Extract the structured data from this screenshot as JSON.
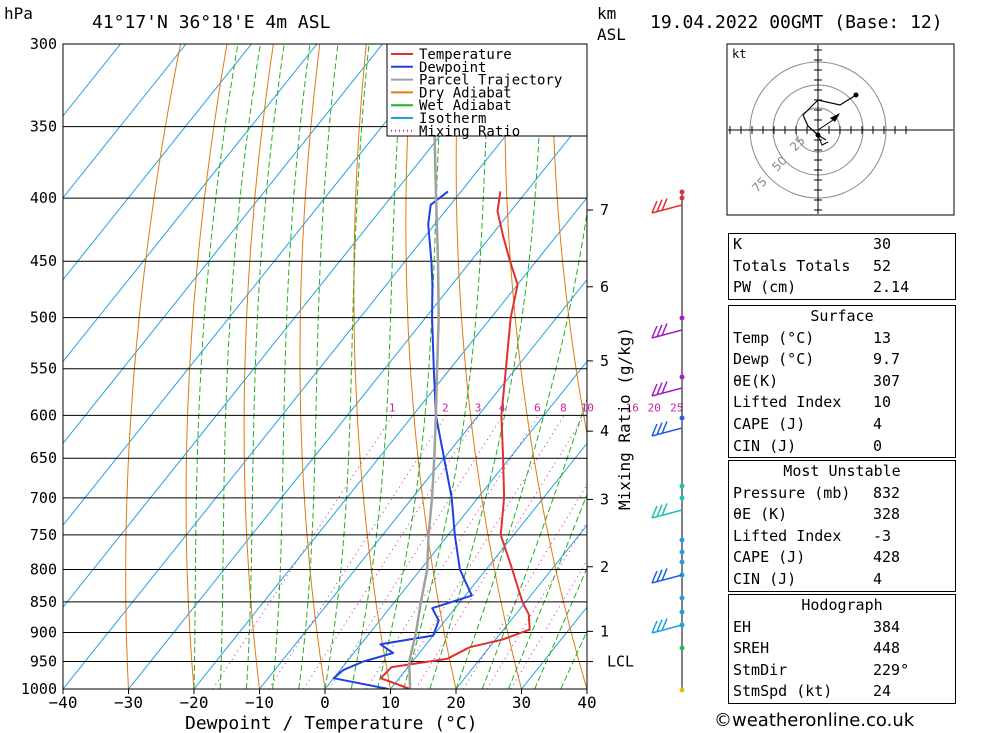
{
  "header": {
    "pressure_unit": "hPa",
    "location": "41°17'N 36°18'E 4m ASL",
    "km_unit": "km",
    "asl_unit": "ASL",
    "datetime": "19.04.2022 00GMT (Base: 12)"
  },
  "chart_data": {
    "type": "line",
    "title": "41°17'N 36°18'E 4m ASL",
    "xlabel": "Dewpoint / Temperature (°C)",
    "ylabel": "hPa",
    "y_scale": "log",
    "ylim": [
      1000,
      300
    ],
    "xlim_at_1000hPa": [
      -40,
      40
    ],
    "skew": "isotherms slope upward to the right",
    "pressure_ticks": [
      300,
      350,
      400,
      450,
      500,
      550,
      600,
      650,
      700,
      750,
      800,
      850,
      900,
      950,
      1000
    ],
    "temp_ticks": [
      -40,
      -30,
      -20,
      -10,
      0,
      10,
      20,
      30,
      40
    ],
    "km_ticks": [
      {
        "label": "7",
        "p": 409
      },
      {
        "label": "6",
        "p": 472
      },
      {
        "label": "5",
        "p": 542
      },
      {
        "label": "4",
        "p": 618
      },
      {
        "label": "3",
        "p": 702
      },
      {
        "label": "2",
        "p": 796
      },
      {
        "label": "1",
        "p": 898
      },
      {
        "label": "LCL",
        "p": 950
      }
    ],
    "mixing_ratio_label": "Mixing Ratio (g/kg)",
    "mixing_ratio_values": [
      1,
      2,
      3,
      4,
      6,
      8,
      10,
      16,
      20,
      25
    ],
    "legend": {
      "placement": "top-center",
      "entries": [
        {
          "name": "Temperature",
          "color": "#e03030"
        },
        {
          "name": "Dewpoint",
          "color": "#2040e0"
        },
        {
          "name": "Parcel Trajectory",
          "color": "#a0a0a0"
        },
        {
          "name": "Dry Adiabat",
          "color": "#e07a10"
        },
        {
          "name": "Wet Adiabat",
          "color": "#20b020"
        },
        {
          "name": "Isotherm",
          "color": "#20a0e0"
        },
        {
          "name": "Mixing Ratio",
          "color": "#d020a0"
        }
      ]
    },
    "series": [
      {
        "name": "Temperature",
        "color": "#e03030",
        "points": [
          {
            "p": 1000,
            "t": 13
          },
          {
            "p": 980,
            "t": 7.2
          },
          {
            "p": 960,
            "t": 7.5
          },
          {
            "p": 945,
            "t": 15
          },
          {
            "p": 925,
            "t": 17
          },
          {
            "p": 912,
            "t": 21
          },
          {
            "p": 895,
            "t": 24
          },
          {
            "p": 870,
            "t": 22
          },
          {
            "p": 850,
            "t": 19.5
          },
          {
            "p": 800,
            "t": 14
          },
          {
            "p": 750,
            "t": 8
          },
          {
            "p": 700,
            "t": 4
          },
          {
            "p": 650,
            "t": -1
          },
          {
            "p": 600,
            "t": -6.5
          },
          {
            "p": 550,
            "t": -11.5
          },
          {
            "p": 500,
            "t": -17
          },
          {
            "p": 470,
            "t": -20
          },
          {
            "p": 450,
            "t": -24
          },
          {
            "p": 430,
            "t": -28
          },
          {
            "p": 410,
            "t": -32
          },
          {
            "p": 395,
            "t": -34
          }
        ]
      },
      {
        "name": "Dewpoint",
        "color": "#2040e0",
        "points": [
          {
            "p": 1000,
            "t": 9.7
          },
          {
            "p": 980,
            "t": 0
          },
          {
            "p": 965,
            "t": 0.5
          },
          {
            "p": 950,
            "t": 2.5
          },
          {
            "p": 935,
            "t": 6
          },
          {
            "p": 920,
            "t": 3
          },
          {
            "p": 905,
            "t": 10
          },
          {
            "p": 880,
            "t": 9
          },
          {
            "p": 860,
            "t": 6.5
          },
          {
            "p": 840,
            "t": 11
          },
          {
            "p": 800,
            "t": 6
          },
          {
            "p": 750,
            "t": 1
          },
          {
            "p": 700,
            "t": -4
          },
          {
            "p": 650,
            "t": -10
          },
          {
            "p": 600,
            "t": -16.5
          },
          {
            "p": 550,
            "t": -22.5
          },
          {
            "p": 500,
            "t": -29
          },
          {
            "p": 470,
            "t": -33
          },
          {
            "p": 450,
            "t": -36
          },
          {
            "p": 420,
            "t": -41
          },
          {
            "p": 405,
            "t": -43
          },
          {
            "p": 395,
            "t": -42
          }
        ]
      },
      {
        "name": "Parcel Trajectory",
        "color": "#a0a0a0",
        "points": [
          {
            "p": 1000,
            "t": 13
          },
          {
            "p": 950,
            "t": 9.5
          },
          {
            "p": 900,
            "t": 7
          },
          {
            "p": 850,
            "t": 4
          },
          {
            "p": 800,
            "t": 1
          },
          {
            "p": 750,
            "t": -3
          },
          {
            "p": 700,
            "t": -7
          },
          {
            "p": 650,
            "t": -11.5
          },
          {
            "p": 600,
            "t": -16.5
          },
          {
            "p": 550,
            "t": -22
          },
          {
            "p": 500,
            "t": -28
          },
          {
            "p": 450,
            "t": -35
          },
          {
            "p": 400,
            "t": -43
          },
          {
            "p": 350,
            "t": -52
          },
          {
            "p": 300,
            "t": -62
          }
        ]
      }
    ]
  },
  "hodograph": {
    "unit": "kt",
    "rings": [
      "25",
      "50",
      "75"
    ]
  },
  "indices": {
    "rows1": [
      {
        "k": "K",
        "v": "30"
      },
      {
        "k": "Totals Totals",
        "v": "52"
      },
      {
        "k": "PW (cm)",
        "v": "2.14"
      }
    ],
    "surface_title": "Surface",
    "surface": [
      {
        "k": "Temp (°C)",
        "v": "13"
      },
      {
        "k": "Dewp (°C)",
        "v": "9.7"
      },
      {
        "k": "θE(K)",
        "v": "307"
      },
      {
        "k": "Lifted Index",
        "v": "10"
      },
      {
        "k": "CAPE (J)",
        "v": "4"
      },
      {
        "k": "CIN (J)",
        "v": "0"
      }
    ],
    "mu_title": "Most Unstable",
    "mu": [
      {
        "k": "Pressure (mb)",
        "v": "832"
      },
      {
        "k": "θE (K)",
        "v": "328"
      },
      {
        "k": "Lifted Index",
        "v": "-3"
      },
      {
        "k": "CAPE (J)",
        "v": "428"
      },
      {
        "k": "CIN (J)",
        "v": "4"
      }
    ],
    "hodo_title": "Hodograph",
    "hodo": [
      {
        "k": "EH",
        "v": "384"
      },
      {
        "k": "SREH",
        "v": "448"
      },
      {
        "k": "StmDir",
        "v": "229°"
      },
      {
        "k": "StmSpd (kt)",
        "v": "24"
      }
    ]
  },
  "footer": {
    "copyright": "©weatheronline.co.uk"
  }
}
